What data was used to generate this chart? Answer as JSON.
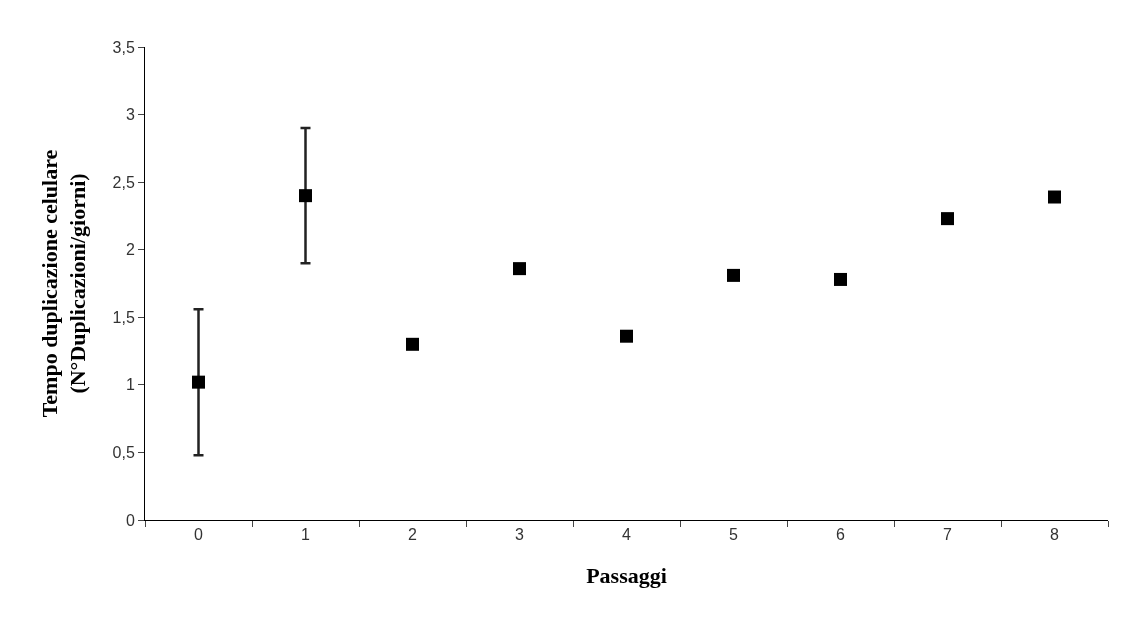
{
  "chart_data": {
    "type": "scatter",
    "xlabel": "Passaggi",
    "ylabel": "Tempo duplicazione celulare\n(N°Duplicazioni/giorni)",
    "categories": [
      "0",
      "1",
      "2",
      "3",
      "4",
      "5",
      "6",
      "7",
      "8"
    ],
    "series": [
      {
        "color": "#000000",
        "values": [
          1.02,
          2.4,
          1.3,
          1.86,
          1.36,
          1.81,
          1.78,
          2.23,
          2.39
        ],
        "errors": [
          [
            0.48,
            1.56
          ],
          [
            1.9,
            2.9
          ],
          null,
          null,
          null,
          null,
          null,
          null,
          null
        ]
      }
    ],
    "ylim": [
      0,
      3.5
    ],
    "yticks": [
      0,
      {
        "value": 0.5,
        "label": "0,5"
      },
      1,
      {
        "value": 1.5,
        "label": "1,5"
      },
      2,
      {
        "value": 2.5,
        "label": "2,5"
      },
      3,
      {
        "value": 3.5,
        "label": "3,5"
      }
    ],
    "grid": false,
    "marker": "square"
  }
}
